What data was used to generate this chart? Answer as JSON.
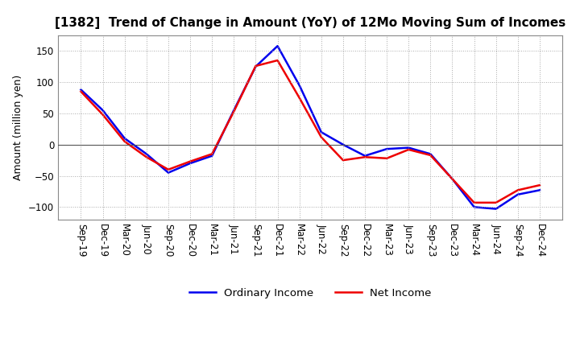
{
  "title": "[1382]  Trend of Change in Amount (YoY) of 12Mo Moving Sum of Incomes",
  "ylabel": "Amount (million yen)",
  "labels": [
    "Sep-19",
    "Dec-19",
    "Mar-20",
    "Jun-20",
    "Sep-20",
    "Dec-20",
    "Mar-21",
    "Jun-21",
    "Sep-21",
    "Dec-21",
    "Mar-22",
    "Jun-22",
    "Sep-22",
    "Dec-22",
    "Mar-23",
    "Jun-23",
    "Sep-23",
    "Dec-23",
    "Mar-24",
    "Jun-24",
    "Sep-24",
    "Dec-24"
  ],
  "ordinary_income": [
    88,
    55,
    10,
    -15,
    -45,
    -30,
    -18,
    55,
    125,
    158,
    95,
    20,
    0,
    -18,
    -7,
    -5,
    -15,
    -55,
    -100,
    -103,
    -80,
    -73
  ],
  "net_income": [
    85,
    48,
    5,
    -20,
    -40,
    -27,
    -15,
    53,
    126,
    135,
    75,
    12,
    -25,
    -20,
    -22,
    -8,
    -17,
    -55,
    -93,
    -93,
    -73,
    -65
  ],
  "ordinary_color": "#0000ee",
  "net_color": "#ee0000",
  "ylim": [
    -120,
    175
  ],
  "yticks": [
    -100,
    -50,
    0,
    50,
    100,
    150
  ],
  "grid_color": "#aaaaaa",
  "bg_color": "#ffffff",
  "legend_ordinary": "Ordinary Income",
  "legend_net": "Net Income",
  "line_width": 1.8,
  "title_fontsize": 11,
  "label_fontsize": 8.5,
  "ylabel_fontsize": 9
}
